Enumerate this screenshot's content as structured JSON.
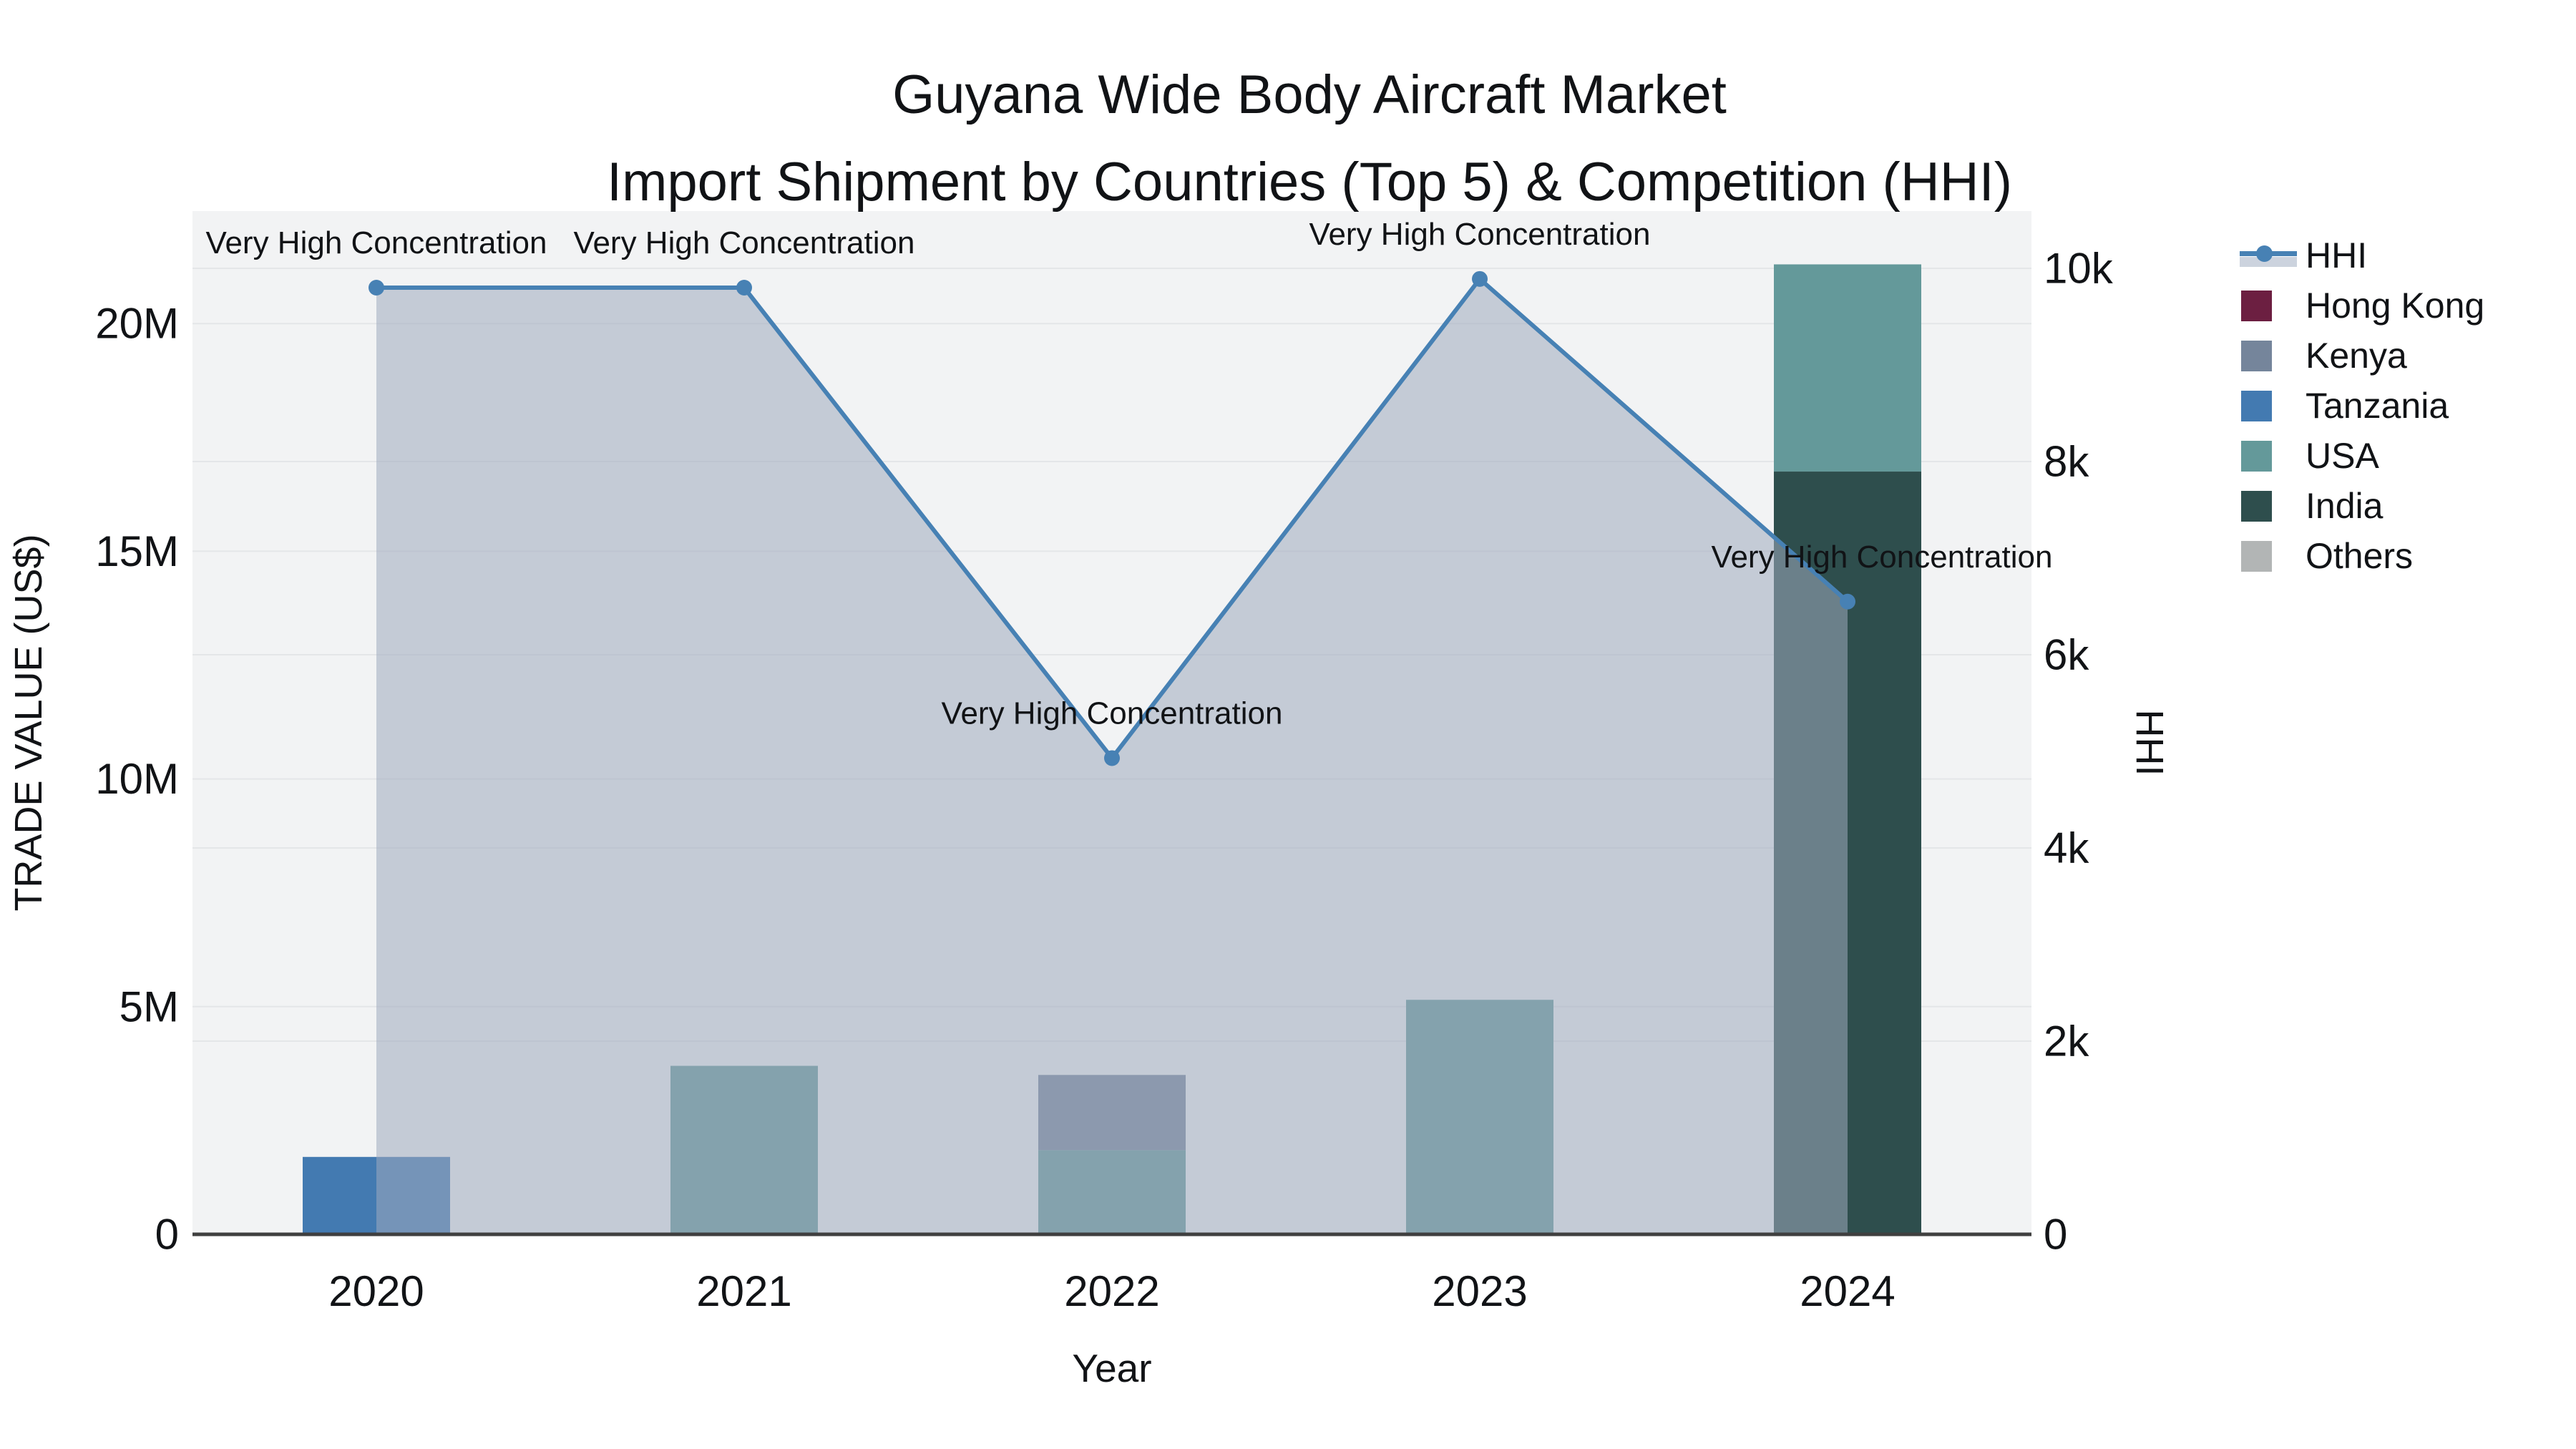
{
  "title": {
    "line1": "Guyana Wide Body Aircraft Market",
    "line2": "Import Shipment by Countries (Top 5) & Competition (HHI)"
  },
  "axes": {
    "x": {
      "title": "Year",
      "ticks": [
        "2020",
        "2021",
        "2022",
        "2023",
        "2024"
      ]
    },
    "y_left": {
      "title": "TRADE VALUE (US$)",
      "ticks": [
        "0",
        "5M",
        "10M",
        "15M",
        "20M"
      ],
      "tick_values_musd": [
        0,
        5,
        10,
        15,
        20
      ],
      "range_musd": [
        0,
        22.5
      ]
    },
    "y_right": {
      "title": "HHI",
      "ticks": [
        "0",
        "2k",
        "4k",
        "6k",
        "8k",
        "10k"
      ],
      "tick_values": [
        0,
        2000,
        4000,
        6000,
        8000,
        10000
      ],
      "range": [
        0,
        10600
      ]
    }
  },
  "legend": {
    "items": [
      {
        "label": "HHI",
        "type": "line",
        "color": "#4781b4",
        "fill": "#ccd3de"
      },
      {
        "label": "Hong Kong",
        "type": "swatch",
        "color": "#6c1f41"
      },
      {
        "label": "Kenya",
        "type": "swatch",
        "color": "#75859b"
      },
      {
        "label": "Tanzania",
        "type": "swatch",
        "color": "#437ab1"
      },
      {
        "label": "USA",
        "type": "swatch",
        "color": "#64999a"
      },
      {
        "label": "India",
        "type": "swatch",
        "color": "#2e4e4d"
      },
      {
        "label": "Others",
        "type": "swatch",
        "color": "#b2b5b5"
      }
    ]
  },
  "colors": {
    "plot_bg": "#f2f3f4",
    "grid": "#e4e6e8",
    "axis_line": "#3f3f3f",
    "hhi_line": "#4781b4",
    "hhi_fill": "rgba(158,170,190,0.55)",
    "text": "#111316"
  },
  "chart_data": [
    {
      "type": "bar",
      "stacked": true,
      "stack_order": "last_series_at_bottom",
      "categories": [
        "2020",
        "2021",
        "2022",
        "2023",
        "2024"
      ],
      "series": [
        {
          "name": "Hong Kong",
          "color": "#6c1f41",
          "values_usd": [
            0,
            0,
            0,
            0,
            0
          ]
        },
        {
          "name": "Kenya",
          "color": "#75859b",
          "values_usd": [
            0,
            0,
            1650000,
            0,
            0
          ]
        },
        {
          "name": "Tanzania",
          "color": "#437ab1",
          "values_usd": [
            1700000,
            0,
            0,
            0,
            0
          ]
        },
        {
          "name": "USA",
          "color": "#64999a",
          "values_usd": [
            0,
            3700000,
            1850000,
            5150000,
            4550000
          ]
        },
        {
          "name": "India",
          "color": "#2e4e4d",
          "values_usd": [
            0,
            0,
            0,
            0,
            16750000
          ]
        },
        {
          "name": "Others",
          "color": "#b2b5b5",
          "values_usd": [
            0,
            0,
            0,
            0,
            0
          ]
        }
      ],
      "xlabel": "Year",
      "ylabel": "TRADE VALUE (US$)",
      "ylim_usd": [
        0,
        22500000
      ],
      "grid": true
    },
    {
      "type": "line",
      "x": [
        "2020",
        "2021",
        "2022",
        "2023",
        "2024"
      ],
      "series": [
        {
          "name": "HHI",
          "color": "#4781b4",
          "area_fill": "rgba(158,170,190,0.55)",
          "values": [
            9800,
            9800,
            4930,
            9890,
            6550
          ]
        }
      ],
      "yaxis": "right",
      "ylabel": "HHI",
      "ylim": [
        0,
        10600
      ],
      "legend_position": "right",
      "annotations": [
        {
          "text": "Very High Concentration",
          "x_index": 0,
          "dx": 0
        },
        {
          "text": "Very High Concentration",
          "x_index": 1,
          "dx": 0
        },
        {
          "text": "Very High Concentration",
          "x_index": 2,
          "dx": 0
        },
        {
          "text": "Very High Concentration",
          "x_index": 3,
          "dx": 0
        },
        {
          "text": "Very High Concentration",
          "x_index": 4,
          "dx": 48
        }
      ]
    }
  ]
}
